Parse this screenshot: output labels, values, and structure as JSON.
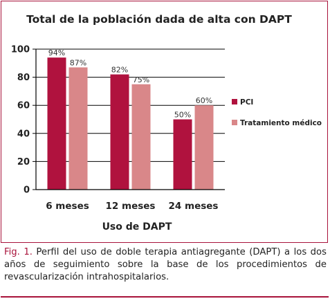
{
  "chart_data": {
    "type": "bar",
    "title": "Total de la población dada de alta con DAPT",
    "xlabel": "Uso de DAPT",
    "ylabel": "",
    "categories": [
      "6 meses",
      "12 meses",
      "24 meses"
    ],
    "series": [
      {
        "name": "PCI",
        "values": [
          94,
          82,
          50
        ],
        "labels": [
          "94%",
          "82%",
          "50%"
        ],
        "color": "#b0123e"
      },
      {
        "name": "Tratamiento médico",
        "values": [
          87,
          75,
          60
        ],
        "labels": [
          "87%",
          "75%",
          "60%"
        ],
        "color": "#d98789"
      }
    ],
    "ylim": [
      0,
      100
    ],
    "yticks": [
      0,
      20,
      40,
      60,
      80,
      100
    ],
    "grid": true,
    "legend": "right"
  },
  "caption": {
    "label": "Fig. 1.",
    "text": " Perfil del uso de doble terapia antiagregante (DAPT) a los dos años de seguimiento sobre la base de los procedimientos de revascularización intrahospitalarios."
  },
  "colors": {
    "accent": "#a8123a"
  }
}
